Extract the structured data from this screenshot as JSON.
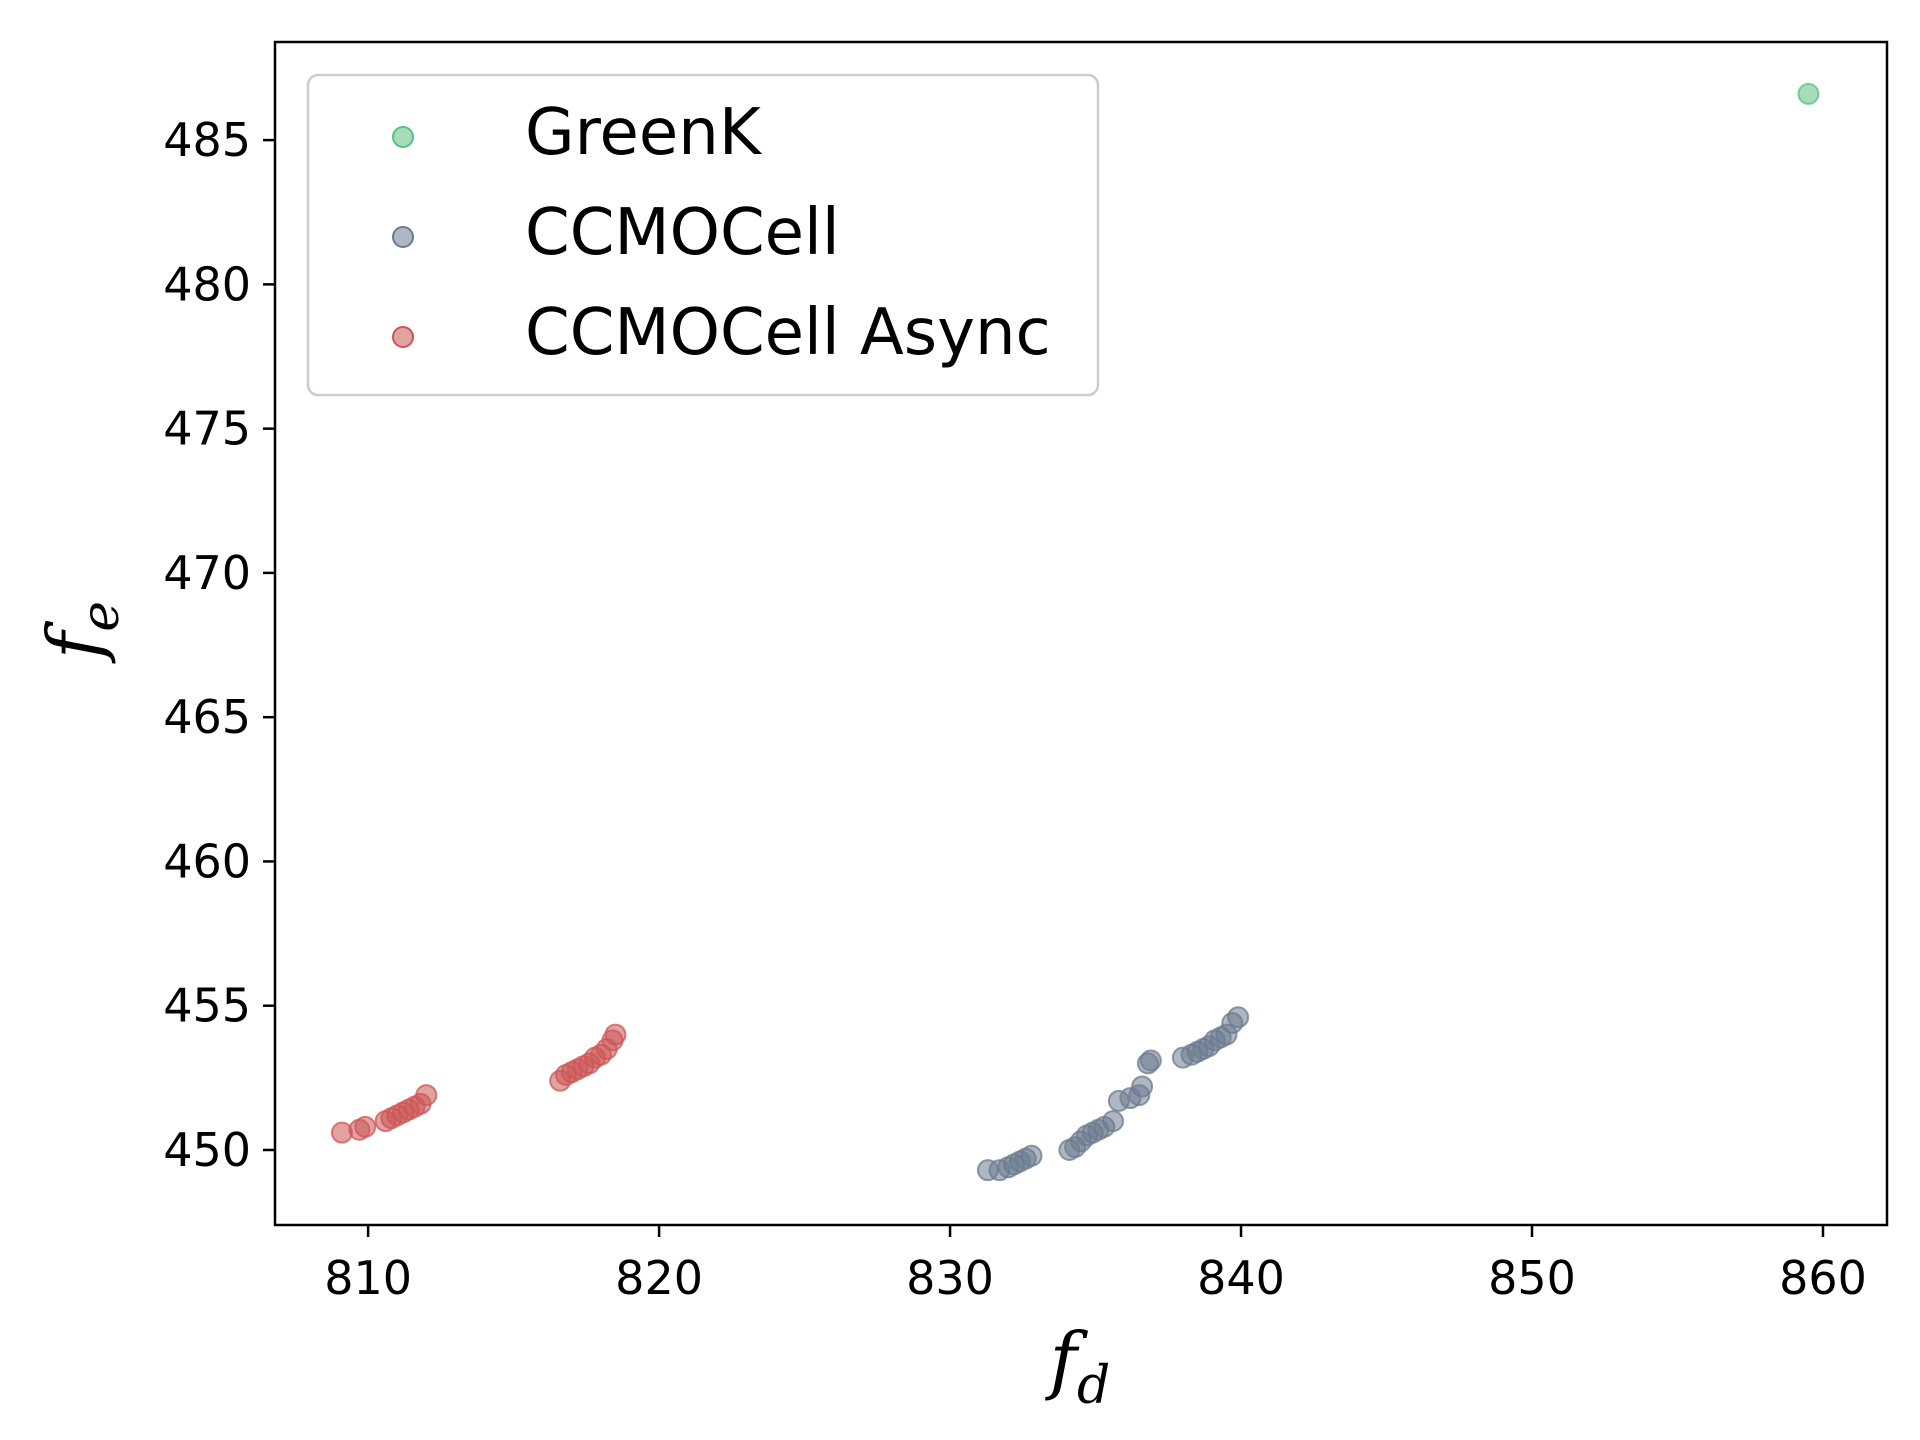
{
  "chart_data": {
    "type": "scatter",
    "title": "",
    "xlabel": "f",
    "xlabel_sub": "d",
    "ylabel": "f",
    "ylabel_sub": "e",
    "xlim": [
      806.8,
      862.2
    ],
    "ylim": [
      447.4,
      488.4
    ],
    "xticks": [
      810,
      820,
      830,
      840,
      850,
      860
    ],
    "yticks": [
      450,
      455,
      460,
      465,
      470,
      475,
      480,
      485
    ],
    "grid": false,
    "legend_position": "upper-left",
    "series": [
      {
        "name": "GreenK",
        "color": "#5cbf82",
        "points": [
          [
            859.5,
            486.6
          ]
        ]
      },
      {
        "name": "CCMOCell",
        "color": "#6b7b8f",
        "points": [
          [
            831.3,
            449.3
          ],
          [
            831.7,
            449.3
          ],
          [
            832.0,
            449.4
          ],
          [
            832.2,
            449.5
          ],
          [
            832.4,
            449.6
          ],
          [
            832.6,
            449.7
          ],
          [
            832.8,
            449.8
          ],
          [
            834.1,
            450.0
          ],
          [
            834.3,
            450.1
          ],
          [
            834.5,
            450.3
          ],
          [
            834.7,
            450.5
          ],
          [
            834.9,
            450.6
          ],
          [
            835.1,
            450.7
          ],
          [
            835.3,
            450.8
          ],
          [
            835.6,
            451.0
          ],
          [
            835.8,
            451.7
          ],
          [
            836.2,
            451.8
          ],
          [
            836.5,
            451.9
          ],
          [
            836.6,
            452.2
          ],
          [
            836.8,
            453.0
          ],
          [
            836.9,
            453.1
          ],
          [
            838.0,
            453.2
          ],
          [
            838.3,
            453.3
          ],
          [
            838.5,
            453.4
          ],
          [
            838.7,
            453.5
          ],
          [
            838.9,
            453.6
          ],
          [
            839.1,
            453.8
          ],
          [
            839.3,
            453.9
          ],
          [
            839.5,
            454.0
          ],
          [
            839.7,
            454.4
          ],
          [
            839.9,
            454.6
          ]
        ]
      },
      {
        "name": "CCMOCell Async",
        "color": "#cc5555",
        "points": [
          [
            809.1,
            450.6
          ],
          [
            809.7,
            450.7
          ],
          [
            809.9,
            450.8
          ],
          [
            810.6,
            451.0
          ],
          [
            810.8,
            451.1
          ],
          [
            811.0,
            451.2
          ],
          [
            811.2,
            451.3
          ],
          [
            811.4,
            451.4
          ],
          [
            811.6,
            451.5
          ],
          [
            811.8,
            451.6
          ],
          [
            812.0,
            451.9
          ],
          [
            816.6,
            452.4
          ],
          [
            816.8,
            452.6
          ],
          [
            817.0,
            452.7
          ],
          [
            817.2,
            452.8
          ],
          [
            817.4,
            452.9
          ],
          [
            817.6,
            453.0
          ],
          [
            817.8,
            453.2
          ],
          [
            818.0,
            453.3
          ],
          [
            818.2,
            453.5
          ],
          [
            818.4,
            453.8
          ],
          [
            818.5,
            454.0
          ]
        ]
      }
    ]
  }
}
